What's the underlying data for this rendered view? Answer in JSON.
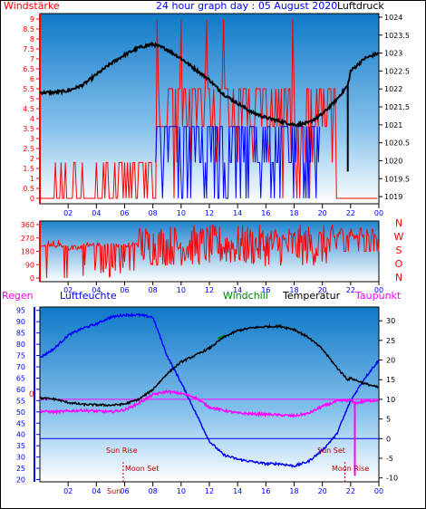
{
  "top": {
    "title": "24 hour graph day : 05 August 2020",
    "left_label": "Windstärke",
    "right_label": "Luftdruck",
    "left_ticks": [
      "9",
      "8.5",
      "8",
      "7.5",
      "7",
      "6.5",
      "6",
      "5.5",
      "5",
      "4.5",
      "4",
      "3.5",
      "3",
      "2.5",
      "2",
      "1.5",
      "1",
      "0.5",
      "0"
    ],
    "right_ticks": [
      "1024",
      "1023.5",
      "1023",
      "1022.5",
      "1022",
      "1021.5",
      "1021",
      "1020.5",
      "1020",
      "1019.5",
      "1019"
    ],
    "x_ticks": [
      "02",
      "04",
      "06",
      "08",
      "10",
      "12",
      "14",
      "16",
      "18",
      "20",
      "22",
      "00"
    ]
  },
  "mid": {
    "left_ticks": [
      "360",
      "270",
      "180",
      "90",
      "0"
    ],
    "right_letters": [
      "N",
      "W",
      "S",
      "O",
      "N"
    ],
    "x_ticks": [
      "02",
      "04",
      "06",
      "08",
      "10",
      "12",
      "14",
      "16",
      "18",
      "20",
      "22",
      "00"
    ]
  },
  "bottom": {
    "legend": {
      "regen": "Regen",
      "luftfeuchte": "Luftfeuchte",
      "windchill": "Windchill",
      "temperatur": "Temperatur",
      "taupunkt": "Taupunkt"
    },
    "left_ticks": [
      "95",
      "90",
      "85",
      "80",
      "75",
      "70",
      "65",
      "60",
      "55",
      "50",
      "45",
      "40",
      "35",
      "30",
      "25",
      "20"
    ],
    "right_ticks": [
      "30",
      "25",
      "20",
      "15",
      "10",
      "5",
      "0",
      "-5",
      "-10"
    ],
    "zero_label": "0",
    "x_ticks": [
      "02",
      "04",
      "06",
      "08",
      "10",
      "12",
      "14",
      "16",
      "18",
      "20",
      "22",
      "00"
    ],
    "annotations": {
      "sun_rise": "Sun Rise",
      "sun_set": "Sun Set",
      "moon_set": "Moon Set",
      "moon_rise": "Moon Rise",
      "sun_overlap": "Sun"
    }
  },
  "colors": {
    "wind_speed": "#ff0000",
    "wind_gust_band": "#0000ff",
    "pressure": "#000000",
    "humidity": "#0000ff",
    "temperature": "#000000",
    "dewpoint": "#ff00ff",
    "windchill": "#008000",
    "sky_top": "#0f79c8",
    "sky_bottom": "#ffffff"
  },
  "chart_data": [
    {
      "type": "line",
      "name": "wind and pressure",
      "x_range_hours": [
        0,
        24
      ],
      "pressure_hpa": {
        "x": [
          0,
          1,
          2,
          3,
          4,
          5,
          6,
          7,
          8,
          9,
          10,
          11,
          12,
          13,
          14,
          15,
          16,
          17,
          18,
          19,
          20,
          21,
          21.8,
          22,
          23,
          24
        ],
        "values": [
          1021.9,
          1021.9,
          1021.95,
          1022.1,
          1022.4,
          1022.7,
          1022.95,
          1023.15,
          1023.25,
          1023.1,
          1022.85,
          1022.55,
          1022.25,
          1021.85,
          1021.6,
          1021.35,
          1021.2,
          1021.1,
          1021.0,
          1021.05,
          1021.3,
          1021.7,
          1022.1,
          1022.5,
          1022.85,
          1023.0
        ]
      },
      "pressure_spike": {
        "x": 21.8,
        "from": 1022.1,
        "to": 1019.7
      },
      "left_ylim": [
        0,
        9
      ],
      "right_ylim": [
        1018.8,
        1024.1
      ]
    },
    {
      "type": "line",
      "name": "wind direction",
      "ylim": [
        0,
        360
      ],
      "x_range_hours": [
        0,
        24
      ]
    },
    {
      "type": "line",
      "name": "weather",
      "temperature_c": {
        "x": [
          0,
          1,
          2,
          3,
          4,
          5,
          6,
          7,
          8,
          9,
          10,
          11,
          12,
          13,
          14,
          15,
          16,
          17,
          18,
          19,
          20,
          21,
          21.8,
          22,
          23,
          24
        ],
        "values": [
          10.3,
          10.1,
          9.2,
          8.7,
          8.6,
          8.5,
          8.8,
          10.0,
          12.5,
          16.5,
          19.5,
          21.2,
          23.0,
          25.8,
          27.5,
          28.2,
          28.5,
          28.6,
          27.8,
          25.8,
          22.8,
          18.2,
          15.0,
          15.4,
          14.0,
          13.0
        ]
      },
      "humidity_pct": {
        "x": [
          0,
          1,
          2,
          3,
          4,
          5,
          6,
          7,
          8,
          9,
          10,
          11,
          12,
          13,
          14,
          15,
          16,
          17,
          18,
          19,
          20,
          21,
          22,
          23,
          24
        ],
        "values": [
          74,
          78,
          84,
          87,
          89,
          92,
          93,
          93,
          92,
          75,
          63,
          50,
          37,
          31,
          29,
          28,
          27,
          27,
          26,
          28,
          33,
          40,
          55,
          65,
          73
        ]
      },
      "dewpoint_c": {
        "x": [
          0,
          1,
          2,
          3,
          4,
          5,
          6,
          7,
          8,
          9,
          10,
          11,
          12,
          13,
          14,
          15,
          16,
          17,
          18,
          19,
          20,
          21,
          22,
          22.3,
          23,
          24
        ],
        "values": [
          7.0,
          6.8,
          7.0,
          7.2,
          7.0,
          6.8,
          7.3,
          9.0,
          11.2,
          12.0,
          11.5,
          10.5,
          8.0,
          7.2,
          6.5,
          6.3,
          6.2,
          6.0,
          5.8,
          6.4,
          8.2,
          9.5,
          9.8,
          9.0,
          9.5,
          9.8
        ]
      },
      "dewpoint_spike": {
        "x": 22.3,
        "from": 9.5,
        "to": -9.5
      },
      "right_ylim": [
        -11,
        33.5
      ],
      "left_ylim": [
        19,
        96.5
      ]
    }
  ]
}
